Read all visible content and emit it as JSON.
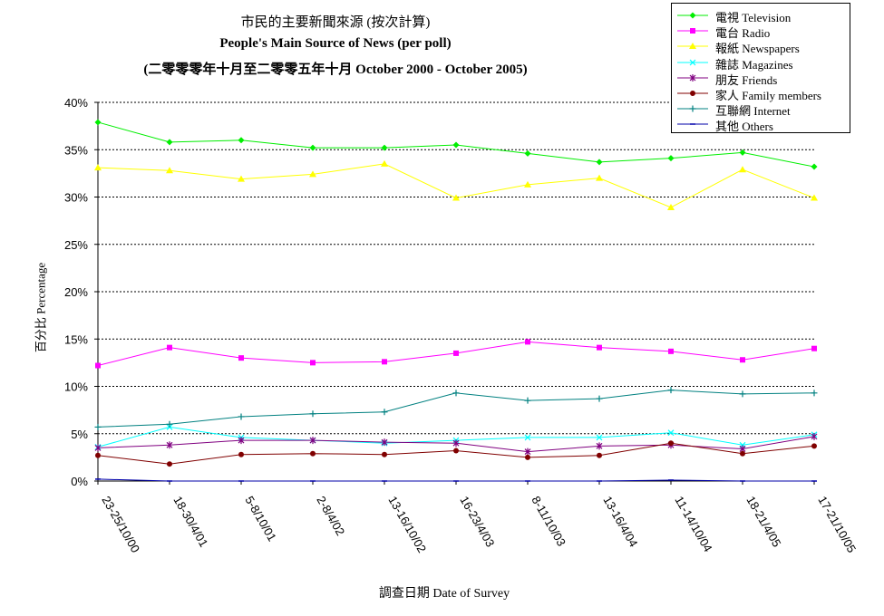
{
  "chart_data": {
    "type": "line",
    "title": "市民的主要新聞來源 (按次計算)",
    "subtitle": "People's Main Source of News (per poll)",
    "subtitle2": "(二零零零年十月至二零零五年十月 October 2000 - October 2005)",
    "xlabel": "調查日期 Date of Survey",
    "ylabel": "百分比 Percentage",
    "ylim": [
      0,
      40
    ],
    "yticks": [
      "0%",
      "5%",
      "10%",
      "15%",
      "20%",
      "25%",
      "30%",
      "35%",
      "40%"
    ],
    "grid": true,
    "legend_position": "top-right",
    "categories": [
      "23-25/10/00",
      "18-30/4/01",
      "5-8/10/01",
      "2-8/4/02",
      "13-16/10/02",
      "16-23/4/03",
      "8-11/10/03",
      "13-16/4/04",
      "11-14/10/04",
      "18-21/4/05",
      "17-21/10/05"
    ],
    "series": [
      {
        "name": "電視 Television",
        "color": "#00ee00",
        "marker": "diamond",
        "values": [
          37.9,
          35.8,
          36.0,
          35.2,
          35.2,
          35.5,
          34.6,
          33.7,
          34.1,
          34.7,
          33.2
        ]
      },
      {
        "name": "電台 Radio",
        "color": "#ff00ff",
        "marker": "square",
        "values": [
          12.2,
          14.1,
          13.0,
          12.5,
          12.6,
          13.5,
          14.7,
          14.1,
          13.7,
          12.8,
          14.0
        ]
      },
      {
        "name": "報紙 Newspapers",
        "color": "#ffff00",
        "marker": "triangle",
        "values": [
          33.1,
          32.8,
          31.9,
          32.4,
          33.5,
          29.9,
          31.3,
          32.0,
          28.9,
          32.9,
          29.9
        ]
      },
      {
        "name": "雜誌 Magazines",
        "color": "#00ffff",
        "marker": "x",
        "values": [
          3.6,
          5.7,
          4.6,
          4.3,
          4.0,
          4.3,
          4.6,
          4.6,
          5.1,
          3.8,
          4.9
        ]
      },
      {
        "name": "朋友 Friends",
        "color": "#800080",
        "marker": "star",
        "values": [
          3.5,
          3.8,
          4.3,
          4.3,
          4.1,
          4.0,
          3.1,
          3.7,
          3.8,
          3.4,
          4.7
        ]
      },
      {
        "name": "家人 Family members",
        "color": "#800000",
        "marker": "circle",
        "values": [
          2.7,
          1.8,
          2.8,
          2.9,
          2.8,
          3.2,
          2.5,
          2.7,
          4.0,
          2.9,
          3.7
        ]
      },
      {
        "name": "互聯網 Internet",
        "color": "#008080",
        "marker": "plus",
        "values": [
          5.7,
          6.0,
          6.8,
          7.1,
          7.3,
          9.3,
          8.5,
          8.7,
          9.6,
          9.2,
          9.3
        ]
      },
      {
        "name": "其他 Others",
        "color": "#0000aa",
        "marker": "dash",
        "values": [
          0.2,
          0.0,
          0.0,
          0.0,
          0.0,
          0.0,
          0.0,
          0.0,
          0.1,
          0.0,
          0.0
        ]
      }
    ]
  }
}
